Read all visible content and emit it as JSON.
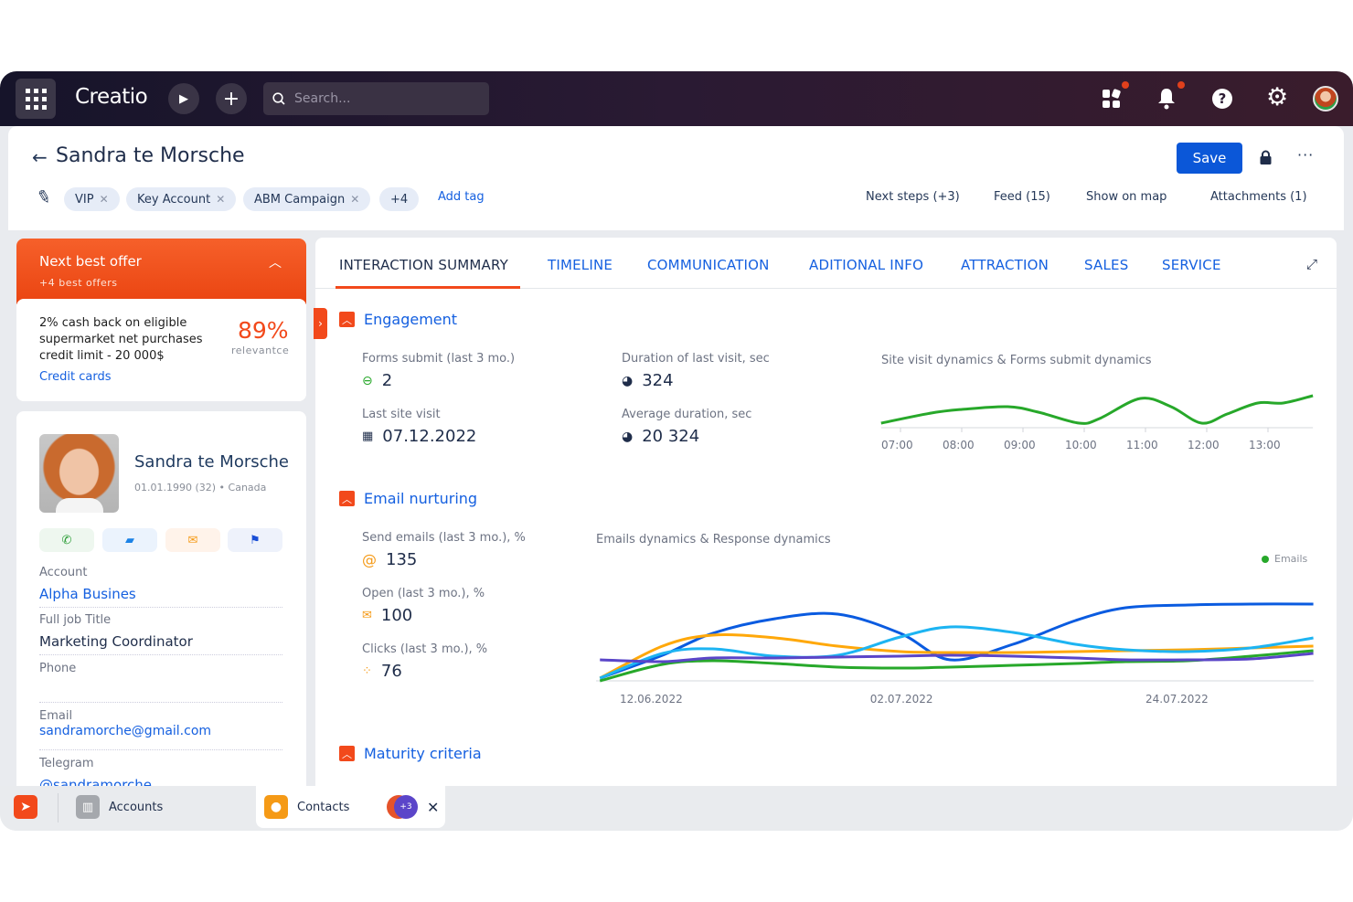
{
  "topbar": {
    "logo": "Creatio",
    "search_placeholder": "Search...",
    "icons": [
      "apps-grid-icon",
      "play-icon",
      "plus-icon",
      "search-icon",
      "widgets-icon",
      "bell-icon",
      "help-icon",
      "gear-icon",
      "avatar"
    ],
    "notification_color": "#e0401c"
  },
  "header": {
    "title": "Sandra te Morsche",
    "save_label": "Save",
    "tags": [
      {
        "label": "VIP"
      },
      {
        "label": "Key Account"
      },
      {
        "label": "ABM Campaign"
      }
    ],
    "more_tags": "+4",
    "add_tag": "Add tag",
    "links": [
      "Next steps (+3)",
      "Feed (15)",
      "Show on map",
      "Attachments (1)"
    ]
  },
  "offer": {
    "title": "Next best offer",
    "subtitle": "+4 best offers",
    "text": "2% cash back on eligible supermarket net purchases credit limit - 20 000$",
    "percent": "89%",
    "percent_label": "relevantce",
    "category": "Credit cards"
  },
  "profile": {
    "name": "Sandra te Morsche",
    "meta": "01.01.1990 (32) • Canada",
    "fields": [
      {
        "label": "Account",
        "value": "Alpha Busines"
      },
      {
        "label": "Full job Title",
        "value": "Marketing Coordinator"
      },
      {
        "label": "Phone",
        "value": ""
      },
      {
        "label": "Email",
        "value": "sandramorche@gmail.com"
      },
      {
        "label": "Telegram",
        "value": "@sandramorche"
      }
    ]
  },
  "tabs": [
    "INTERACTION SUMMARY",
    "TIMELINE",
    "COMMUNICATION",
    "ADITIONAL INFO",
    "ATTRACTION",
    "SALES",
    "SERVICE"
  ],
  "engagement": {
    "title": "Engagement",
    "metrics": [
      {
        "label": "Forms submit (last 3 mo.)",
        "value": "2"
      },
      {
        "label": "Duration of last visit, sec",
        "value": "324"
      },
      {
        "label": "Last site visit",
        "value": "07.12.2022"
      },
      {
        "label": "Average duration, sec",
        "value": "20 324"
      }
    ]
  },
  "email": {
    "title": "Email nurturing",
    "metrics": [
      {
        "label": "Send emails (last 3 mo.), %",
        "value": "135"
      },
      {
        "label": "Open (last 3 mo.), %",
        "value": "100"
      },
      {
        "label": "Clicks (last 3 mo.), %",
        "value": "76"
      }
    ]
  },
  "maturity": {
    "title": "Maturity criteria"
  },
  "taskbar": {
    "items": [
      "Accounts",
      "Contacts"
    ],
    "badge": "+3"
  },
  "chart_data": [
    {
      "type": "line",
      "title": "Site visit dynamics & Forms submit dynamics",
      "x_ticks": [
        "07:00",
        "08:00",
        "09:00",
        "10:00",
        "11:00",
        "12:00",
        "13:00"
      ],
      "x_range": [
        "06:41",
        "13:44"
      ],
      "ylim": [
        0,
        50
      ],
      "grid": false,
      "series": [
        {
          "color": "#27a82a",
          "points": [
            [
              "06:41",
              5
            ],
            [
              "07:30",
              16
            ],
            [
              "08:00",
              20
            ],
            [
              "08:45",
              23
            ],
            [
              "09:15",
              17
            ],
            [
              "09:55",
              5
            ],
            [
              "10:15",
              10
            ],
            [
              "10:55",
              32
            ],
            [
              "11:25",
              23
            ],
            [
              "11:55",
              5
            ],
            [
              "12:20",
              15
            ],
            [
              "12:50",
              27
            ],
            [
              "13:15",
              27
            ],
            [
              "13:44",
              35
            ]
          ]
        }
      ]
    },
    {
      "type": "line",
      "title": "Emails dynamics & Response dynamics",
      "legend": [
        {
          "label": "Emails",
          "color": "#27a82a"
        }
      ],
      "legend_position": "top-right",
      "x_ticks": [
        "12.06.2022",
        "02.07.2022",
        "24.07.2022"
      ],
      "x": [
        "08.06.2022",
        "13.06.2022",
        "17.06.2022",
        "22.06.2022",
        "27.06.2022",
        "02.07.2022",
        "06.07.2022",
        "11.07.2022",
        "16.07.2022",
        "20.07.2022",
        "25.07.2022",
        "30.07.2022",
        "04.08.2022"
      ],
      "ylim": [
        0,
        100
      ],
      "grid": false,
      "series": [
        {
          "color": "#0a5be0",
          "values": [
            3,
            28,
            52,
            68,
            73,
            52,
            23,
            40,
            66,
            80,
            83,
            84,
            84
          ]
        },
        {
          "color": "#ffa80a",
          "values": [
            3,
            38,
            50,
            47,
            38,
            32,
            31,
            31,
            32,
            33,
            34,
            36,
            38
          ]
        },
        {
          "color": "#1db4f2",
          "values": [
            3,
            30,
            35,
            27,
            28,
            48,
            59,
            53,
            40,
            34,
            32,
            36,
            47
          ]
        },
        {
          "color": "#27a82a",
          "values": [
            0,
            18,
            22,
            19,
            15,
            14,
            15,
            17,
            19,
            21,
            22,
            27,
            33
          ]
        },
        {
          "color": "#5a45c8",
          "values": [
            23,
            21,
            25,
            25,
            26,
            27,
            28,
            27,
            25,
            23,
            23,
            24,
            30
          ]
        }
      ]
    }
  ]
}
